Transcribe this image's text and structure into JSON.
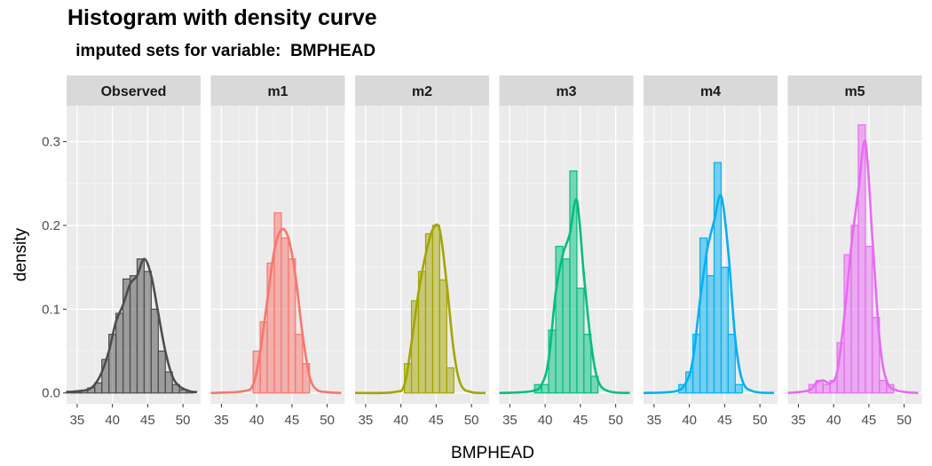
{
  "chart_data": {
    "type": "histogram",
    "title": "Histogram with density curve",
    "subtitle": " imputed sets for variable:  BMPHEAD",
    "xlabel": "BMPHEAD",
    "ylabel": "density",
    "xlim": [
      33.5,
      52.5
    ],
    "ylim": [
      -0.013,
      0.343
    ],
    "x_ticks": [
      35,
      40,
      45,
      50
    ],
    "y_ticks": [
      0.0,
      0.1,
      0.2,
      0.3
    ],
    "y_tick_labels": [
      "0.0",
      "0.1",
      "0.2",
      "0.3"
    ],
    "x_tick_labels": [
      "35",
      "40",
      "45",
      "50"
    ],
    "grid": true,
    "legend": "none",
    "bin_width": 1,
    "panels": [
      {
        "name": "Observed",
        "color": "#4d4d4d",
        "bins": [
          [
            34,
            0.002
          ],
          [
            35,
            0.002
          ],
          [
            36,
            0.003
          ],
          [
            37,
            0.006
          ],
          [
            38,
            0.012
          ],
          [
            39,
            0.04
          ],
          [
            40,
            0.07
          ],
          [
            41,
            0.095
          ],
          [
            42,
            0.136
          ],
          [
            43,
            0.14
          ],
          [
            44,
            0.16
          ],
          [
            45,
            0.145
          ],
          [
            46,
            0.1
          ],
          [
            47,
            0.05
          ],
          [
            48,
            0.025
          ],
          [
            49,
            0.01
          ],
          [
            50,
            0.004
          ],
          [
            51,
            0.002
          ]
        ],
        "density": [
          [
            33.5,
            0.001
          ],
          [
            35,
            0.002
          ],
          [
            36.5,
            0.004
          ],
          [
            37.5,
            0.01
          ],
          [
            38.5,
            0.025
          ],
          [
            39.5,
            0.05
          ],
          [
            40.5,
            0.085
          ],
          [
            41.5,
            0.105
          ],
          [
            42.5,
            0.13
          ],
          [
            43.5,
            0.14
          ],
          [
            44.5,
            0.16
          ],
          [
            45.5,
            0.14
          ],
          [
            46.5,
            0.095
          ],
          [
            47.5,
            0.05
          ],
          [
            48.5,
            0.02
          ],
          [
            49.5,
            0.008
          ],
          [
            51,
            0.002
          ],
          [
            52,
            0.001
          ]
        ]
      },
      {
        "name": "m1",
        "color": "#f8766d",
        "bins": [
          [
            40,
            0.05
          ],
          [
            41,
            0.085
          ],
          [
            42,
            0.155
          ],
          [
            43,
            0.215
          ],
          [
            44,
            0.185
          ],
          [
            45,
            0.16
          ],
          [
            46,
            0.07
          ],
          [
            47,
            0.035
          ]
        ],
        "density": [
          [
            33.5,
            0
          ],
          [
            38,
            0.002
          ],
          [
            39.5,
            0.01
          ],
          [
            40.5,
            0.05
          ],
          [
            41.5,
            0.11
          ],
          [
            42.5,
            0.17
          ],
          [
            43.5,
            0.195
          ],
          [
            44.5,
            0.185
          ],
          [
            45.5,
            0.14
          ],
          [
            46.5,
            0.07
          ],
          [
            47.5,
            0.02
          ],
          [
            48.5,
            0.004
          ],
          [
            50,
            0.001
          ],
          [
            52,
            0
          ]
        ]
      },
      {
        "name": "m2",
        "color": "#a3a500",
        "bins": [
          [
            41,
            0.035
          ],
          [
            42,
            0.11
          ],
          [
            43,
            0.145
          ],
          [
            44,
            0.19
          ],
          [
            45,
            0.2
          ],
          [
            46,
            0.135
          ],
          [
            47,
            0.03
          ]
        ],
        "density": [
          [
            33.5,
            0
          ],
          [
            39,
            0.001
          ],
          [
            40.5,
            0.01
          ],
          [
            41.5,
            0.06
          ],
          [
            42.5,
            0.12
          ],
          [
            43.5,
            0.165
          ],
          [
            44.5,
            0.195
          ],
          [
            45.5,
            0.195
          ],
          [
            46.5,
            0.13
          ],
          [
            47.5,
            0.05
          ],
          [
            48.5,
            0.01
          ],
          [
            50,
            0.001
          ],
          [
            52,
            0
          ]
        ]
      },
      {
        "name": "m3",
        "color": "#00bf7d",
        "bins": [
          [
            39,
            0.01
          ],
          [
            40,
            0.01
          ],
          [
            41,
            0.075
          ],
          [
            42,
            0.175
          ],
          [
            43,
            0.16
          ],
          [
            44,
            0.265
          ],
          [
            45,
            0.125
          ],
          [
            46,
            0.07
          ],
          [
            47,
            0.02
          ]
        ],
        "density": [
          [
            33.5,
            0
          ],
          [
            38,
            0.002
          ],
          [
            39.5,
            0.01
          ],
          [
            40.5,
            0.04
          ],
          [
            41.5,
            0.12
          ],
          [
            42.5,
            0.165
          ],
          [
            43.5,
            0.19
          ],
          [
            44.5,
            0.23
          ],
          [
            45.5,
            0.14
          ],
          [
            46.5,
            0.06
          ],
          [
            47.5,
            0.015
          ],
          [
            49,
            0.002
          ],
          [
            52,
            0
          ]
        ]
      },
      {
        "name": "m4",
        "color": "#00b0f6",
        "bins": [
          [
            39,
            0.01
          ],
          [
            40,
            0.025
          ],
          [
            41,
            0.07
          ],
          [
            42,
            0.185
          ],
          [
            43,
            0.14
          ],
          [
            44,
            0.275
          ],
          [
            45,
            0.15
          ],
          [
            46,
            0.07
          ],
          [
            47,
            0.01
          ]
        ],
        "density": [
          [
            33.5,
            0
          ],
          [
            38,
            0.002
          ],
          [
            39.5,
            0.012
          ],
          [
            40.5,
            0.04
          ],
          [
            41.5,
            0.11
          ],
          [
            42.5,
            0.17
          ],
          [
            43.5,
            0.205
          ],
          [
            44.5,
            0.235
          ],
          [
            45.5,
            0.17
          ],
          [
            46.5,
            0.065
          ],
          [
            47.5,
            0.015
          ],
          [
            49,
            0.002
          ],
          [
            52,
            0
          ]
        ]
      },
      {
        "name": "m5",
        "color": "#e76bf3",
        "bins": [
          [
            37,
            0.01
          ],
          [
            38,
            0.015
          ],
          [
            39,
            0.01
          ],
          [
            40,
            0.015
          ],
          [
            41,
            0.06
          ],
          [
            42,
            0.165
          ],
          [
            43,
            0.2
          ],
          [
            44,
            0.32
          ],
          [
            45,
            0.175
          ],
          [
            46,
            0.09
          ],
          [
            47,
            0.015
          ],
          [
            48,
            0.01
          ]
        ],
        "density": [
          [
            33.5,
            0
          ],
          [
            36.5,
            0.003
          ],
          [
            37.5,
            0.012
          ],
          [
            38.5,
            0.015
          ],
          [
            39.5,
            0.012
          ],
          [
            40.5,
            0.025
          ],
          [
            41.5,
            0.09
          ],
          [
            42.5,
            0.175
          ],
          [
            43.5,
            0.24
          ],
          [
            44.5,
            0.3
          ],
          [
            45.5,
            0.185
          ],
          [
            46.5,
            0.065
          ],
          [
            47.5,
            0.015
          ],
          [
            49,
            0.003
          ],
          [
            52,
            0
          ]
        ]
      }
    ]
  }
}
